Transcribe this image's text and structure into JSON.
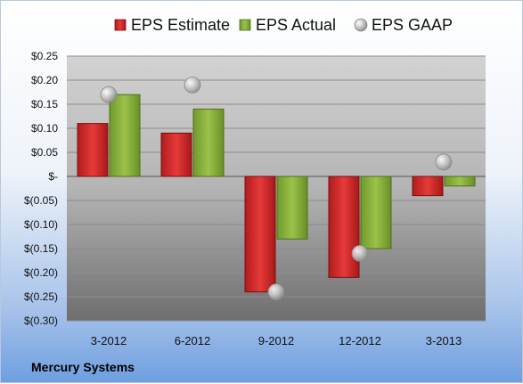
{
  "chart_data": {
    "type": "bar",
    "categories": [
      "3-2012",
      "6-2012",
      "9-2012",
      "12-2012",
      "3-2013"
    ],
    "series": [
      {
        "name": "EPS Estimate",
        "type": "bar",
        "color": "#d42b2b",
        "values": [
          0.11,
          0.09,
          -0.24,
          -0.21,
          -0.04
        ]
      },
      {
        "name": "EPS Actual",
        "type": "bar",
        "color": "#8cb43c",
        "values": [
          0.17,
          0.14,
          -0.13,
          -0.15,
          -0.02
        ]
      },
      {
        "name": "EPS GAAP",
        "type": "scatter",
        "color": "#b8b8b8",
        "values": [
          0.17,
          0.19,
          -0.24,
          -0.16,
          0.03
        ]
      }
    ],
    "ylim": [
      -0.3,
      0.25
    ],
    "yticks": [
      0.25,
      0.2,
      0.15,
      0.1,
      0.05,
      0,
      -0.05,
      -0.1,
      -0.15,
      -0.2,
      -0.25,
      -0.3
    ],
    "ytick_labels": [
      "$0.25",
      "$0.20",
      "$0.15",
      "$0.10",
      "$0.05",
      "$-",
      "$(0.05)",
      "$(0.10)",
      "$(0.15)",
      "$(0.20)",
      "$(0.25)",
      "$(0.30)"
    ],
    "grid": true,
    "legend_position": "top",
    "source_label": "Mercury Systems"
  }
}
